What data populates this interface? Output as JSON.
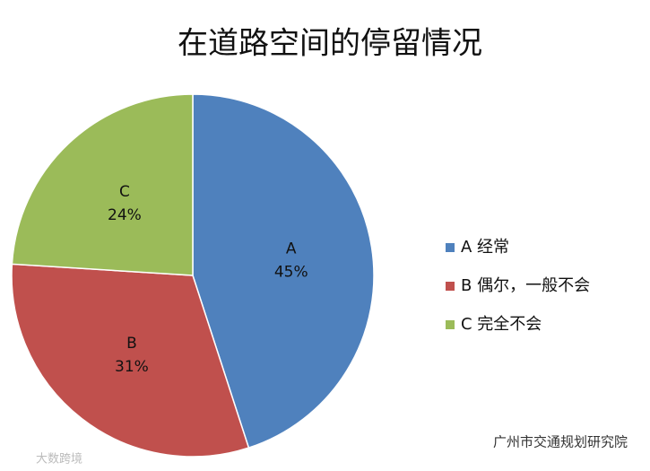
{
  "chart_data": {
    "type": "pie",
    "title": "在道路空间的停留情况",
    "categories": [
      "A",
      "B",
      "C"
    ],
    "legend_labels": [
      "A 经常",
      "B 偶尔，一般不会",
      "C 完全不会"
    ],
    "values": [
      45,
      31,
      24
    ],
    "value_labels": [
      "45%",
      "31%",
      "24%"
    ],
    "colors": [
      "#4f81bd",
      "#c0504d",
      "#9bbb59"
    ]
  },
  "watermarks": [
    "广州市交通规划研究院",
    "大数跨境"
  ]
}
